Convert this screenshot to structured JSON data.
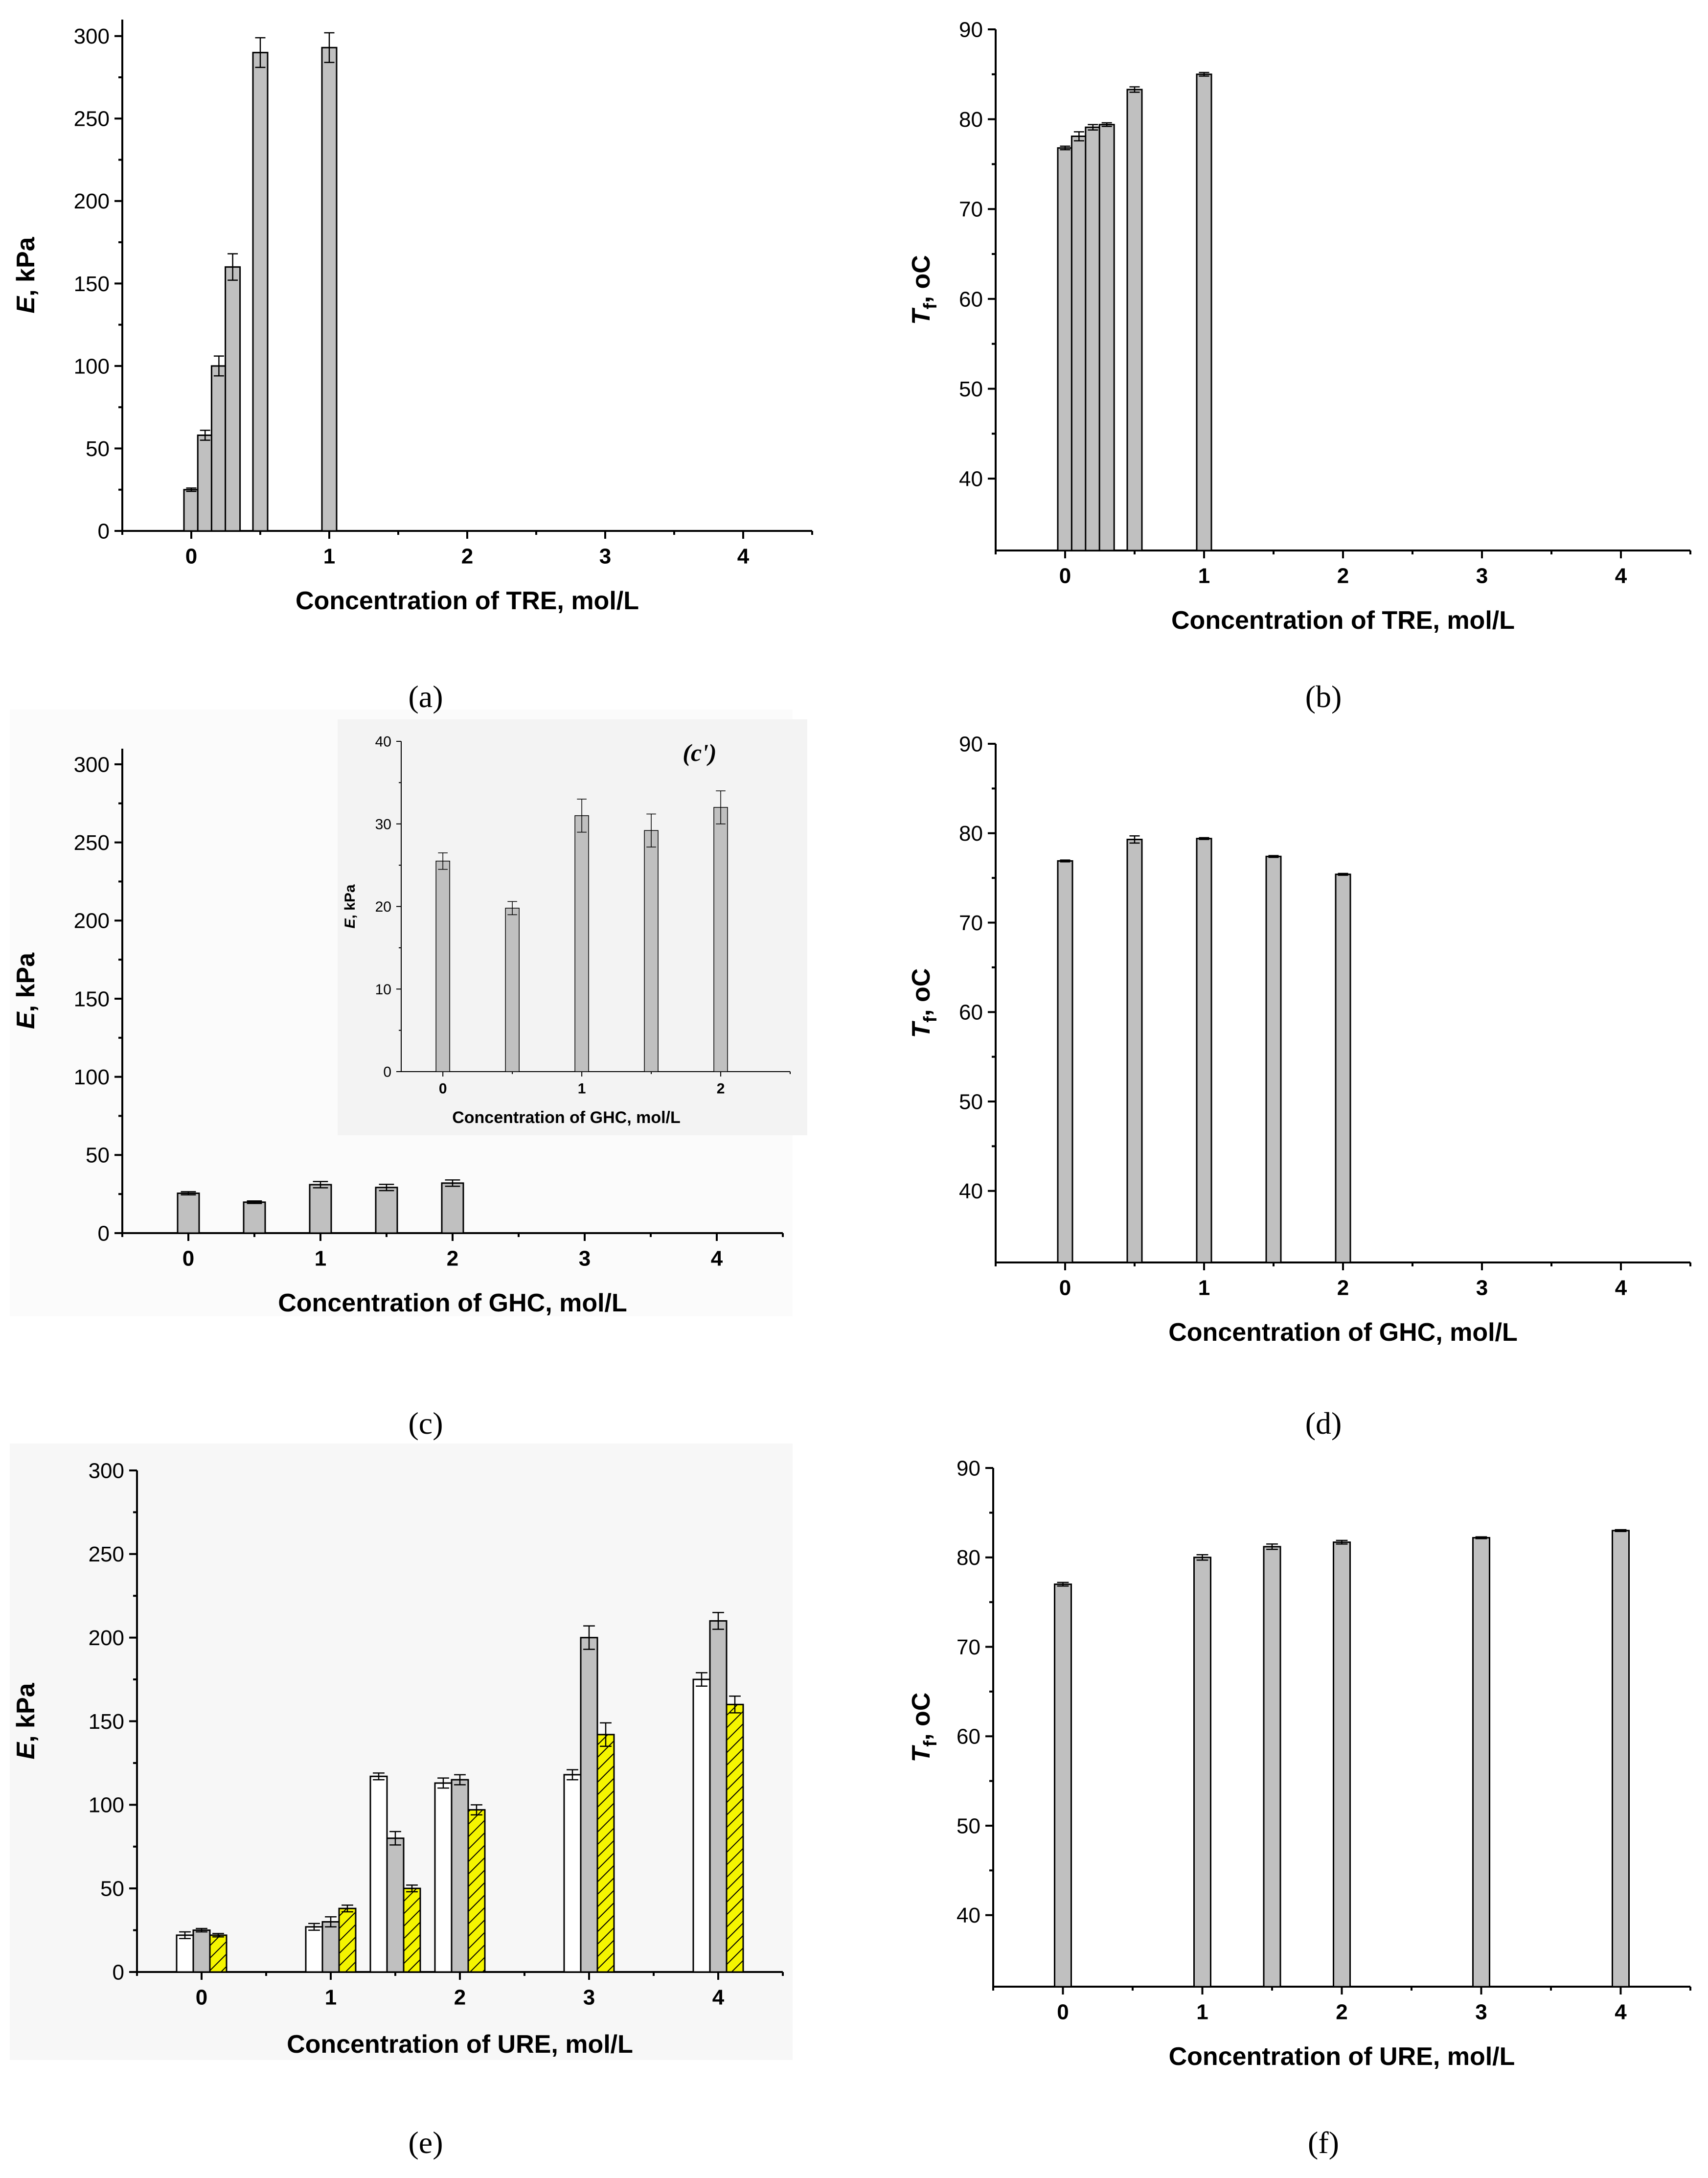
{
  "colors": {
    "axis": "#000000",
    "bar_gray": "#c0c0c0",
    "bar_white": "#ffffff",
    "bar_yellow": "#f5f500",
    "bg_tinted": "#f3f3f3"
  },
  "chart_data": [
    {
      "panel": "(a)",
      "type": "bar",
      "xlabel": "Concentration of TRE, mol/L",
      "ylabel_main": "E",
      "ylabel_rest": ", kPa",
      "xlim": [
        -0.5,
        4.5
      ],
      "ylim": [
        0,
        310
      ],
      "xticks": [
        0,
        1,
        2,
        3,
        4
      ],
      "yticks": [
        0,
        50,
        100,
        150,
        200,
        250,
        300
      ],
      "series": [
        {
          "name": "E",
          "style": "gray",
          "x": [
            0,
            0.1,
            0.2,
            0.3,
            0.5,
            1.0
          ],
          "values": [
            25,
            58,
            100,
            160,
            290,
            293
          ],
          "errors": [
            1,
            3,
            6,
            8,
            9,
            9
          ]
        }
      ]
    },
    {
      "panel": "(b)",
      "type": "bar",
      "xlabel": "Concentration of TRE, mol/L",
      "ylabel_main": "T",
      "ylabel_sub": "f",
      "ylabel_rest": ", oC",
      "xlim": [
        -0.5,
        4.5
      ],
      "ylim": [
        32,
        90
      ],
      "xticks": [
        0,
        1,
        2,
        3,
        4
      ],
      "yticks": [
        40,
        50,
        60,
        70,
        80,
        90
      ],
      "series": [
        {
          "name": "Tf",
          "style": "gray",
          "x": [
            0,
            0.1,
            0.2,
            0.3,
            0.5,
            1.0
          ],
          "values": [
            76.8,
            78.1,
            79.1,
            79.4,
            83.3,
            85.0
          ],
          "errors": [
            0.2,
            0.5,
            0.3,
            0.2,
            0.3,
            0.2
          ]
        }
      ]
    },
    {
      "panel": "(c)",
      "type": "bar",
      "xlabel": "Concentration of GHC, mol/L",
      "ylabel_main": "E",
      "ylabel_rest": ", kPa",
      "xlim": [
        -0.5,
        4.5
      ],
      "ylim": [
        0,
        310
      ],
      "xticks": [
        0,
        1,
        2,
        3,
        4
      ],
      "yticks": [
        0,
        50,
        100,
        150,
        200,
        250,
        300
      ],
      "series": [
        {
          "name": "E",
          "style": "gray",
          "x": [
            0,
            0.5,
            1.0,
            1.5,
            2.0
          ],
          "values": [
            25.5,
            19.8,
            31,
            29.2,
            32
          ],
          "errors": [
            1,
            0.8,
            2,
            2,
            2
          ]
        }
      ]
    },
    {
      "panel": "(c')",
      "type": "bar",
      "inset_of": "(c)",
      "xlabel": "Concentration of GHC, mol/L",
      "ylabel_main": "E",
      "ylabel_rest": ", kPa",
      "xlim": [
        -0.3,
        2.5
      ],
      "ylim": [
        0,
        40
      ],
      "xticks": [
        0,
        1,
        2
      ],
      "yticks": [
        0,
        10,
        20,
        30,
        40
      ],
      "series": [
        {
          "name": "E",
          "style": "gray",
          "x": [
            0,
            0.5,
            1.0,
            1.5,
            2.0
          ],
          "values": [
            25.5,
            19.8,
            31,
            29.2,
            32
          ],
          "errors": [
            1,
            0.8,
            2,
            2,
            2
          ]
        }
      ]
    },
    {
      "panel": "(d)",
      "type": "bar",
      "xlabel": "Concentration of GHC, mol/L",
      "ylabel_main": "T",
      "ylabel_sub": "f",
      "ylabel_rest": ", oC",
      "xlim": [
        -0.5,
        4.5
      ],
      "ylim": [
        32,
        90
      ],
      "xticks": [
        0,
        1,
        2,
        3,
        4
      ],
      "yticks": [
        40,
        50,
        60,
        70,
        80,
        90
      ],
      "series": [
        {
          "name": "Tf",
          "style": "gray",
          "x": [
            0,
            0.5,
            1.0,
            1.5,
            2.0
          ],
          "values": [
            76.9,
            79.3,
            79.4,
            77.4,
            75.4
          ],
          "errors": [
            0.1,
            0.4,
            0.1,
            0.1,
            0.1
          ]
        }
      ]
    },
    {
      "panel": "(e)",
      "type": "bar",
      "xlabel": "Concentration of URE, mol/L",
      "ylabel_main": "E",
      "ylabel_rest": ", kPa",
      "xlim": [
        -0.5,
        4.5
      ],
      "ylim": [
        0,
        300
      ],
      "xticks": [
        0,
        1,
        2,
        3,
        4
      ],
      "yticks": [
        0,
        50,
        100,
        150,
        200,
        250,
        300
      ],
      "series": [
        {
          "name": "white",
          "style": "white",
          "x": [
            0,
            1.0,
            1.5,
            2.0,
            3.0,
            4.0
          ],
          "values": [
            22,
            27,
            117,
            113,
            118,
            175
          ],
          "errors": [
            2,
            2,
            2,
            3,
            3,
            4
          ]
        },
        {
          "name": "gray",
          "style": "gray",
          "x": [
            0,
            1.0,
            1.5,
            2.0,
            3.0,
            4.0
          ],
          "values": [
            25,
            30,
            80,
            115,
            200,
            210
          ],
          "errors": [
            1,
            3,
            4,
            3,
            7,
            5
          ]
        },
        {
          "name": "hatched",
          "style": "hatched",
          "x": [
            0,
            1.0,
            1.5,
            2.0,
            3.0,
            4.0
          ],
          "values": [
            22,
            38,
            50,
            97,
            142,
            160
          ],
          "errors": [
            1,
            2,
            2,
            3,
            7,
            5
          ]
        }
      ]
    },
    {
      "panel": "(f)",
      "type": "bar",
      "xlabel": "Concentration of URE, mol/L",
      "ylabel_main": "T",
      "ylabel_sub": "f",
      "ylabel_rest": ", oC",
      "xlim": [
        -0.5,
        4.5
      ],
      "ylim": [
        32,
        90
      ],
      "xticks": [
        0,
        1,
        2,
        3,
        4
      ],
      "yticks": [
        40,
        50,
        60,
        70,
        80,
        90
      ],
      "series": [
        {
          "name": "Tf",
          "style": "gray",
          "x": [
            0,
            1.0,
            1.5,
            2.0,
            3.0,
            4.0
          ],
          "values": [
            77,
            80,
            81.2,
            81.7,
            82.2,
            83
          ],
          "errors": [
            0.2,
            0.3,
            0.3,
            0.2,
            0.1,
            0.1
          ]
        }
      ]
    }
  ]
}
